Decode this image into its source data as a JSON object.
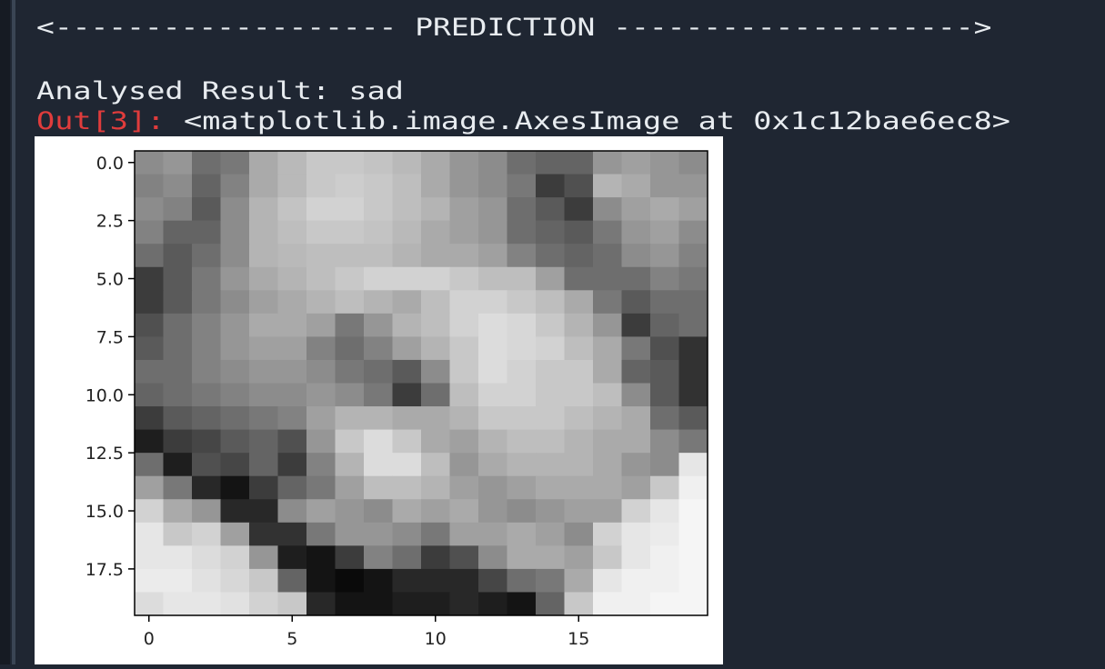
{
  "console": {
    "header": "<------------------- PREDICTION -------------------->",
    "result": "Analysed Result: sad",
    "out_prompt": "Out[3]:",
    "out_text": "<matplotlib.image.AxesImage at 0x1c12bae6ec8>"
  },
  "chart_data": {
    "type": "image",
    "cmap": "gray",
    "xlim": [
      -0.5,
      19.5
    ],
    "ylim": [
      19.5,
      -0.5
    ],
    "xticks": [
      0,
      5,
      10,
      15
    ],
    "yticks": [
      {
        "value": 0,
        "label": "0.0"
      },
      2.5,
      {
        "value": 5,
        "label": "5.0"
      },
      7.5,
      {
        "value": 10,
        "label": "10.0"
      },
      12.5,
      {
        "value": 15,
        "label": "15.0"
      },
      17.5
    ],
    "pixels": [
      [
        140,
        150,
        110,
        120,
        170,
        185,
        200,
        200,
        195,
        185,
        170,
        150,
        140,
        110,
        100,
        100,
        150,
        160,
        150,
        140
      ],
      [
        130,
        140,
        100,
        130,
        170,
        185,
        200,
        205,
        200,
        190,
        170,
        150,
        140,
        120,
        60,
        80,
        180,
        170,
        150,
        150
      ],
      [
        140,
        130,
        90,
        140,
        180,
        195,
        210,
        210,
        200,
        190,
        180,
        160,
        150,
        110,
        90,
        60,
        140,
        160,
        170,
        160
      ],
      [
        130,
        100,
        100,
        140,
        180,
        190,
        200,
        200,
        195,
        185,
        170,
        160,
        150,
        110,
        100,
        90,
        120,
        150,
        160,
        140
      ],
      [
        110,
        90,
        110,
        140,
        180,
        185,
        190,
        190,
        190,
        180,
        170,
        170,
        160,
        130,
        110,
        100,
        110,
        140,
        150,
        130
      ],
      [
        60,
        90,
        120,
        150,
        170,
        180,
        190,
        200,
        210,
        210,
        210,
        200,
        190,
        190,
        160,
        110,
        110,
        110,
        130,
        120
      ],
      [
        60,
        90,
        120,
        140,
        160,
        170,
        180,
        190,
        180,
        170,
        190,
        210,
        210,
        200,
        190,
        170,
        120,
        90,
        110,
        110
      ],
      [
        80,
        110,
        130,
        150,
        170,
        170,
        160,
        120,
        150,
        180,
        190,
        210,
        220,
        215,
        200,
        180,
        150,
        60,
        100,
        110
      ],
      [
        90,
        110,
        130,
        150,
        160,
        160,
        130,
        110,
        130,
        160,
        180,
        200,
        220,
        215,
        210,
        190,
        170,
        120,
        80,
        50
      ],
      [
        110,
        110,
        130,
        140,
        150,
        150,
        140,
        120,
        110,
        90,
        140,
        200,
        220,
        210,
        200,
        200,
        170,
        100,
        90,
        50
      ],
      [
        100,
        110,
        120,
        130,
        140,
        140,
        150,
        140,
        120,
        60,
        110,
        190,
        210,
        210,
        200,
        200,
        190,
        140,
        90,
        50
      ],
      [
        60,
        90,
        100,
        110,
        120,
        130,
        160,
        180,
        180,
        170,
        170,
        180,
        200,
        200,
        200,
        190,
        180,
        170,
        110,
        90
      ],
      [
        30,
        60,
        70,
        90,
        100,
        80,
        150,
        200,
        220,
        200,
        170,
        160,
        180,
        190,
        190,
        180,
        170,
        170,
        140,
        120
      ],
      [
        110,
        30,
        80,
        70,
        100,
        60,
        130,
        180,
        220,
        220,
        190,
        150,
        170,
        180,
        180,
        180,
        170,
        150,
        140,
        230
      ],
      [
        160,
        120,
        40,
        20,
        60,
        100,
        120,
        160,
        190,
        190,
        180,
        160,
        150,
        160,
        170,
        170,
        170,
        160,
        200,
        240
      ],
      [
        210,
        170,
        150,
        40,
        40,
        140,
        160,
        150,
        140,
        170,
        160,
        170,
        150,
        140,
        150,
        160,
        160,
        210,
        230,
        245
      ],
      [
        230,
        200,
        210,
        160,
        50,
        50,
        120,
        150,
        150,
        140,
        120,
        160,
        160,
        170,
        160,
        140,
        210,
        230,
        235,
        245
      ],
      [
        230,
        230,
        220,
        210,
        150,
        30,
        20,
        60,
        130,
        110,
        60,
        80,
        140,
        170,
        170,
        160,
        200,
        230,
        240,
        245
      ],
      [
        235,
        235,
        225,
        215,
        200,
        100,
        20,
        10,
        20,
        40,
        40,
        40,
        70,
        110,
        120,
        170,
        230,
        240,
        240,
        245
      ],
      [
        220,
        230,
        230,
        225,
        210,
        200,
        40,
        20,
        20,
        30,
        30,
        40,
        30,
        20,
        100,
        200,
        240,
        240,
        245,
        245
      ]
    ]
  }
}
